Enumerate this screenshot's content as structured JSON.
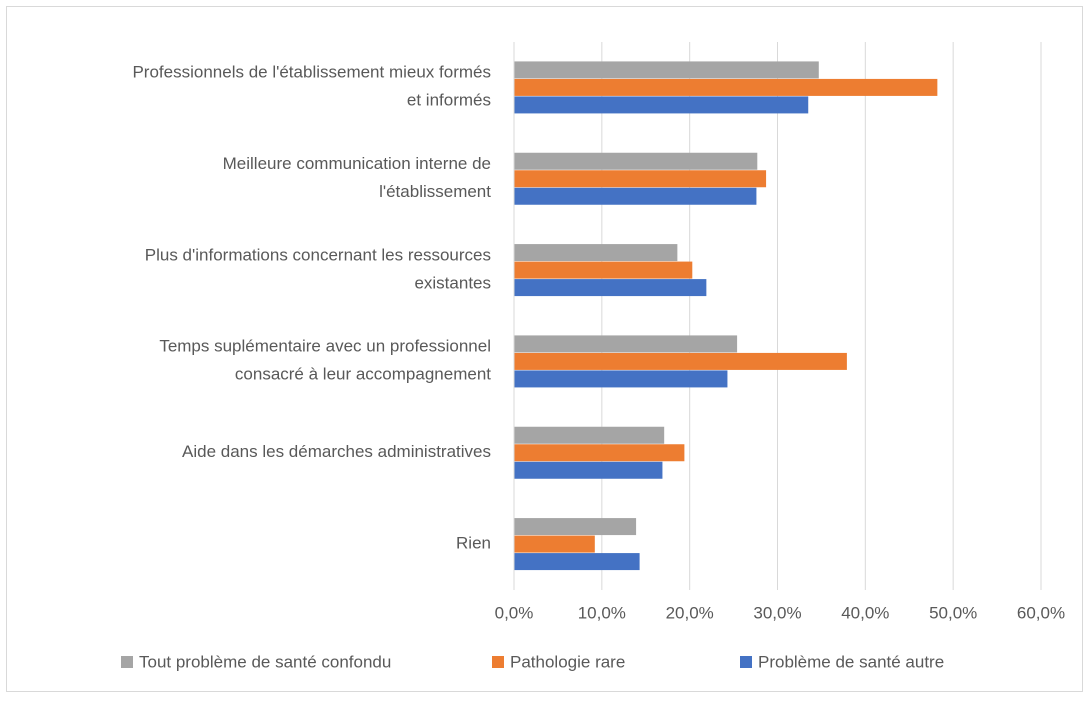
{
  "chart_data": {
    "type": "hbar",
    "categories": [
      "Professionnels de l'établissement mieux formés\net informés",
      "Meilleure communication interne de\nl'établissement",
      "Plus d'informations concernant les ressources\nexistantes",
      "Temps suplémentaire avec un professionnel\nconsacré à leur accompagnement",
      "Aide dans les démarches administratives",
      "Rien"
    ],
    "series": [
      {
        "name": "Tout problème de santé confondu",
        "color": "#a5a5a5",
        "values": [
          34.7,
          27.7,
          18.6,
          25.4,
          17.1,
          13.9
        ]
      },
      {
        "name": "Pathologie rare",
        "color": "#ed7d31",
        "values": [
          48.2,
          28.7,
          20.3,
          37.9,
          19.4,
          9.2
        ]
      },
      {
        "name": "Problème de santé autre",
        "color": "#4472c4",
        "values": [
          33.5,
          27.6,
          21.9,
          24.3,
          16.9,
          14.3
        ]
      }
    ],
    "xlim": [
      0,
      60
    ],
    "xticks": [
      {
        "value": 0,
        "label": "0,0%"
      },
      {
        "value": 10,
        "label": "10,0%"
      },
      {
        "value": 20,
        "label": "20,0%"
      },
      {
        "value": 30,
        "label": "30,0%"
      },
      {
        "value": 40,
        "label": "40,0%"
      },
      {
        "value": 50,
        "label": "50,0%"
      },
      {
        "value": 60,
        "label": "60,0%"
      }
    ],
    "grid": true,
    "legend": "bottom"
  }
}
